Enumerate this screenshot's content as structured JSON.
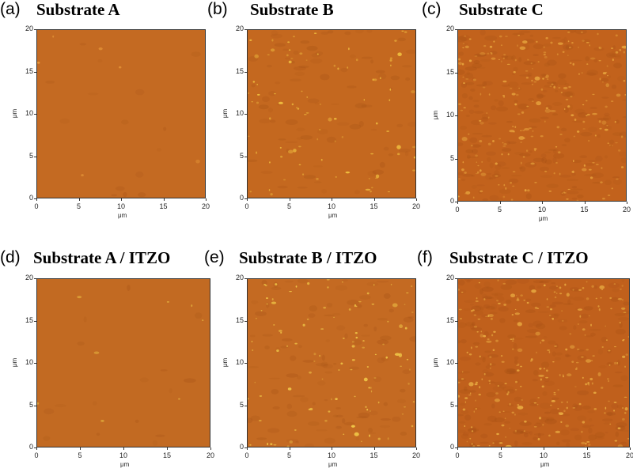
{
  "panels": [
    {
      "label": "(a)",
      "title": "Substrate A",
      "base_color": "#c46a22",
      "speck_color": "#e89a3a",
      "speck_count": 6
    },
    {
      "label": "(b)",
      "title": "Substrate B",
      "base_color": "#c4681f",
      "speck_color": "#f0c040",
      "speck_count": 90
    },
    {
      "label": "(c)",
      "title": "Substrate C",
      "base_color": "#c2621c",
      "speck_color": "#e6a23c",
      "speck_count": 260
    },
    {
      "label": "(d)",
      "title": "Substrate A / ITZO",
      "base_color": "#c26a22",
      "speck_color": "#f2cf4a",
      "speck_count": 8
    },
    {
      "label": "(e)",
      "title": "Substrate B / ITZO",
      "base_color": "#c46a22",
      "speck_color": "#f0c848",
      "speck_count": 110
    },
    {
      "label": "(f)",
      "title": "Substrate C / ITZO",
      "base_color": "#c0601c",
      "speck_color": "#e8aa40",
      "speck_count": 280
    }
  ],
  "axes": {
    "y_ticks": [
      "0",
      "5",
      "10",
      "15",
      "20"
    ],
    "x_ticks": [
      "0",
      "5",
      "10",
      "15",
      "20"
    ],
    "x_unit": "μm",
    "y_unit": "μm"
  }
}
